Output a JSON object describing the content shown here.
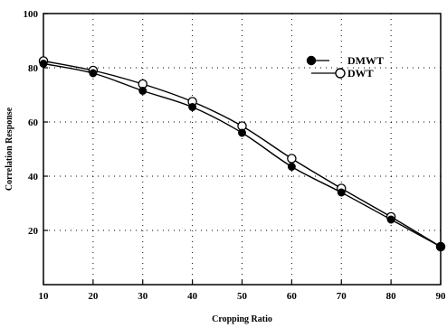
{
  "chart_data": {
    "type": "line",
    "title": "",
    "xlabel": "Cropping Ratio",
    "ylabel": "Correlation Response",
    "x": [
      10,
      20,
      30,
      40,
      50,
      60,
      70,
      80,
      90
    ],
    "xlim": [
      10,
      90
    ],
    "ylim": [
      0,
      100
    ],
    "xticks": [
      10,
      20,
      30,
      40,
      50,
      60,
      70,
      80,
      90
    ],
    "yticks": [
      20,
      40,
      60,
      80,
      100
    ],
    "grid": true,
    "legend_position": "top-right",
    "series": [
      {
        "name": "DMWT",
        "marker": "filled-circle",
        "color": "#000000",
        "values": [
          81.5,
          78,
          71.5,
          65.5,
          56,
          43.5,
          34,
          24,
          14
        ]
      },
      {
        "name": "DWT",
        "marker": "open-circle",
        "color": "#000000",
        "values": [
          82.5,
          79,
          74,
          67.5,
          58.5,
          46.5,
          35.5,
          25,
          14
        ]
      }
    ]
  }
}
